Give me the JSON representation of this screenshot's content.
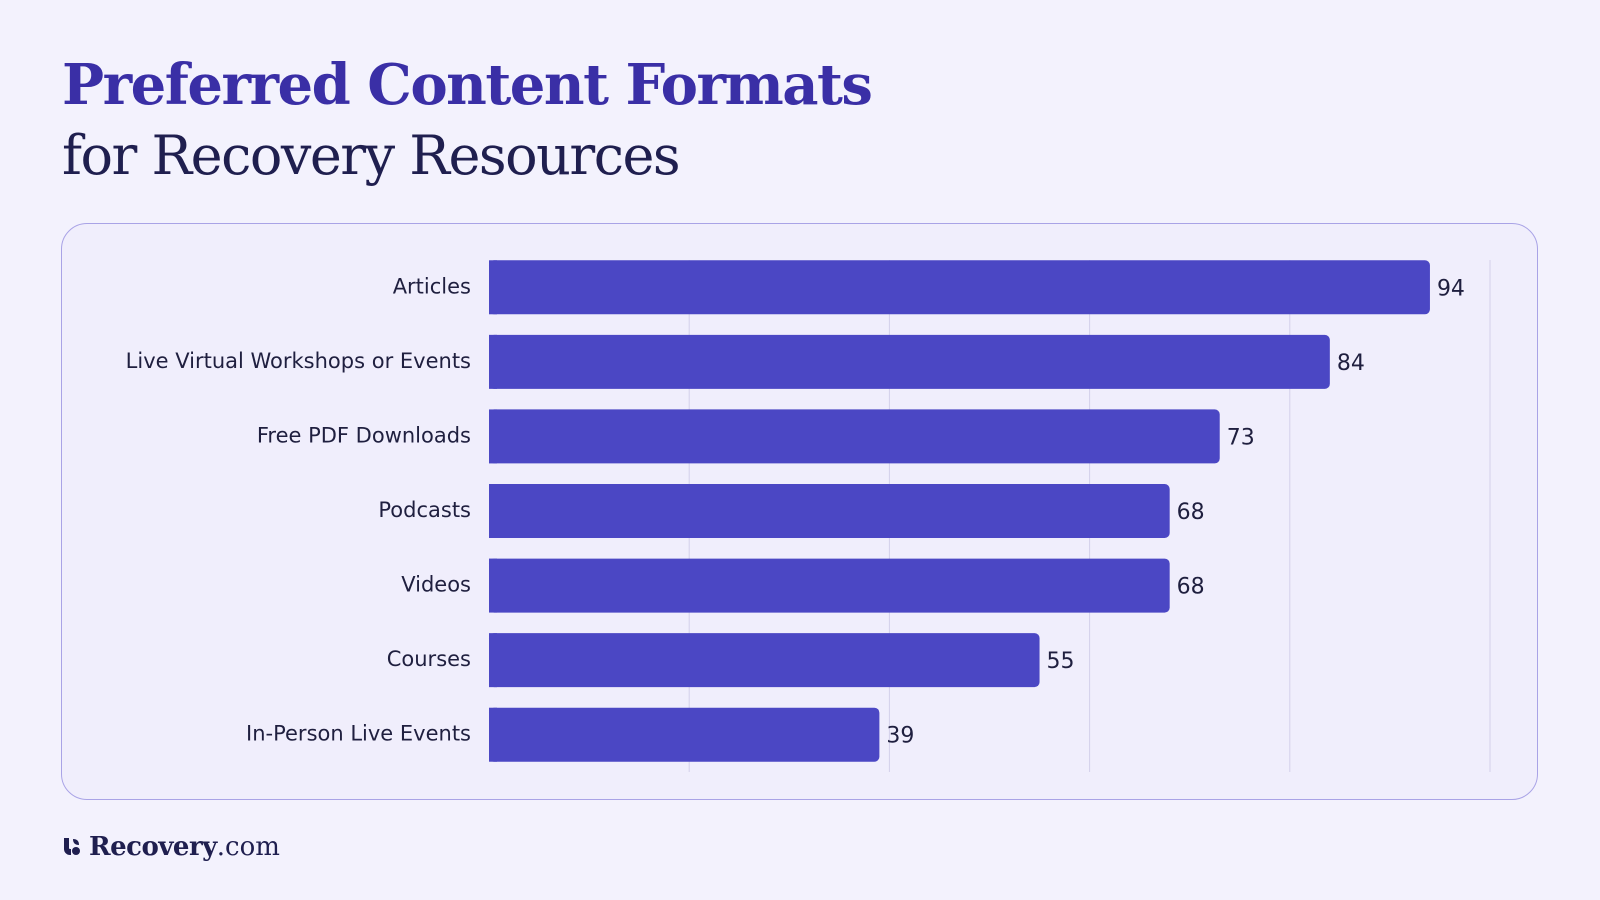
{
  "header": {
    "title_line1": "Preferred Content Formats",
    "title_line2": "for Recovery Resources"
  },
  "brand": {
    "name": "Recovery",
    "tld": ".com",
    "icon": "recovery-logo-icon"
  },
  "colors": {
    "background": "#f3f2fd",
    "bar": "#4b47c4",
    "title_accent": "#3a2fa6",
    "title_dark": "#1f1f4f",
    "card_border": "#a9a3e6",
    "gridline": "#d3d0ea"
  },
  "chart_data": {
    "type": "bar",
    "orientation": "horizontal",
    "categories": [
      "Articles",
      "Live Virtual Workshops or Events",
      "Free PDF Downloads",
      "Podcasts",
      "Videos",
      "Courses",
      "In-Person Live Events"
    ],
    "values": [
      94,
      84,
      73,
      68,
      68,
      55,
      39
    ],
    "xlim": [
      0,
      100
    ],
    "grid": true,
    "data_labels": true,
    "legend": "none"
  }
}
